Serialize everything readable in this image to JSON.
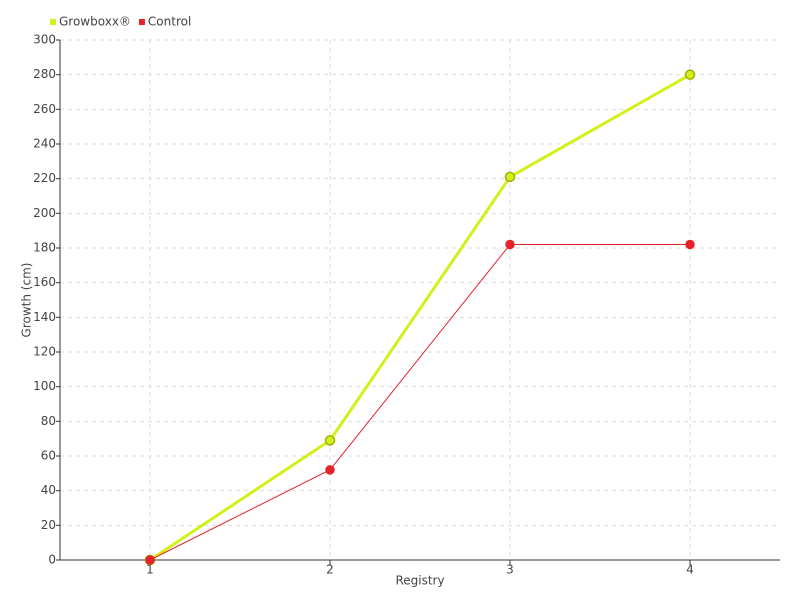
{
  "chart_data": {
    "type": "line",
    "x_label": "Registry",
    "y_label": "Growth (cm)",
    "categories": [
      "1",
      "2",
      "3",
      "4"
    ],
    "series": [
      {
        "name": "Growboxx®",
        "color": "#d4f01a",
        "values": [
          0,
          69,
          221,
          280
        ]
      },
      {
        "name": "Control",
        "color": "#e8222a",
        "values": [
          0,
          52,
          182,
          182
        ]
      }
    ],
    "ylim": [
      0,
      300
    ],
    "yticks": [
      0,
      20,
      40,
      60,
      80,
      100,
      120,
      140,
      160,
      180,
      200,
      220,
      240,
      260,
      280,
      300
    ],
    "grid": true,
    "legend": "top-left"
  }
}
